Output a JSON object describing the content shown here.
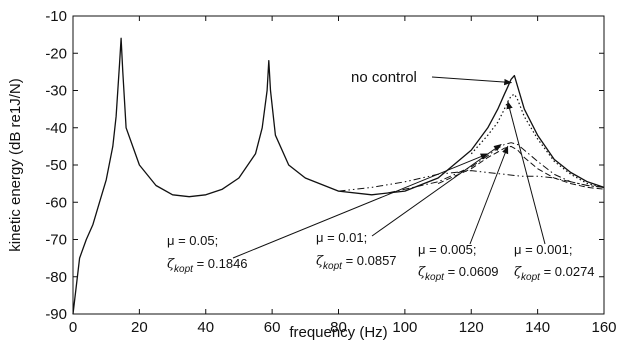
{
  "chart_data": {
    "type": "line",
    "xlabel": "frequency (Hz)",
    "ylabel": "kinetic energy (dB re1J/N)",
    "xlim": [
      0,
      160
    ],
    "ylim": [
      -90,
      -10
    ],
    "x_ticks": [
      "0",
      "20",
      "40",
      "60",
      "80",
      "100",
      "120",
      "140",
      "160"
    ],
    "y_ticks": [
      "-10",
      "-20",
      "-30",
      "-40",
      "-50",
      "-60",
      "-70",
      "-80",
      "-90"
    ],
    "grid": false,
    "series": [
      {
        "name": "no control",
        "style": "solid",
        "x": [
          0,
          2,
          4,
          6,
          8,
          10,
          12,
          13,
          14,
          14.5,
          15,
          16,
          20,
          25,
          30,
          35,
          40,
          45,
          50,
          55,
          57,
          58.5,
          59,
          59.5,
          61,
          65,
          70,
          80,
          90,
          100,
          110,
          120,
          125,
          128,
          130,
          131,
          132,
          133,
          134,
          136,
          140,
          145,
          150,
          155,
          160
        ],
        "y": [
          -90,
          -75,
          -70,
          -66,
          -60,
          -54,
          -45,
          -37,
          -23,
          -16,
          -25,
          -40,
          -50,
          -55.5,
          -58,
          -58.5,
          -58,
          -56.5,
          -53.5,
          -47,
          -40,
          -30,
          -22,
          -30,
          -42,
          -50,
          -53.5,
          -57,
          -58,
          -57,
          -53.5,
          -46,
          -40,
          -35,
          -31,
          -29,
          -27,
          -26,
          -29,
          -35,
          -42,
          -48.5,
          -52,
          -54.5,
          -56
        ]
      },
      {
        "name": "μ = 0.001",
        "style": "dotted",
        "x": [
          120,
          125,
          128,
          130,
          131,
          132,
          133,
          134,
          136,
          140,
          145,
          150,
          155,
          160
        ],
        "y": [
          -47,
          -42,
          -38.5,
          -35,
          -33,
          -31.5,
          -31,
          -32.5,
          -37,
          -43,
          -49,
          -52.5,
          -55,
          -56
        ]
      },
      {
        "name": "μ = 0.005",
        "style": "dashed",
        "x": [
          110,
          120,
          125,
          128,
          130,
          132,
          134,
          136,
          140,
          145,
          150,
          155,
          160
        ],
        "y": [
          -55,
          -51,
          -48,
          -46.5,
          -45.5,
          -45,
          -46,
          -48,
          -51,
          -53.5,
          -55,
          -56,
          -56.5
        ]
      },
      {
        "name": "μ = 0.01",
        "style": "dashdot",
        "x": [
          95,
          110,
          120,
          125,
          128,
          130,
          132,
          134,
          136,
          140,
          145,
          150,
          155,
          160
        ],
        "y": [
          -57.5,
          -54.5,
          -50.5,
          -47.5,
          -45.5,
          -44.5,
          -44,
          -44.5,
          -46,
          -49,
          -52.5,
          -54.5,
          -55.5,
          -56
        ]
      },
      {
        "name": "μ = 0.05",
        "style": "dashdotdot",
        "x": [
          80,
          90,
          100,
          110,
          115,
          120,
          125,
          130,
          135,
          140,
          145,
          150,
          155,
          160
        ],
        "y": [
          -57,
          -56,
          -54.5,
          -52.5,
          -52,
          -51.5,
          -52,
          -52.5,
          -53,
          -53,
          -53.5,
          -54.5,
          -55.5,
          -56
        ]
      }
    ],
    "annotations": [
      {
        "text": "no control",
        "arrow_to": [
          133,
          -26
        ]
      },
      {
        "mu": "μ = 0.05;",
        "zeta": "ζ",
        "sub": "kopt",
        "eq": " = 0.1846",
        "arrow_to": [
          125,
          -47
        ]
      },
      {
        "mu": "μ = 0.01;",
        "zeta": "ζ",
        "sub": "kopt",
        "eq": " = 0.0857",
        "arrow_to": [
          129,
          -44.5
        ]
      },
      {
        "mu": "μ = 0.005;",
        "zeta": "ζ",
        "sub": "kopt",
        "eq": " = 0.0609",
        "arrow_to": [
          131,
          -45
        ]
      },
      {
        "mu": "μ = 0.001;",
        "zeta": "ζ",
        "sub": "kopt",
        "eq": " = 0.0274",
        "arrow_to": [
          131,
          -33
        ]
      }
    ]
  }
}
